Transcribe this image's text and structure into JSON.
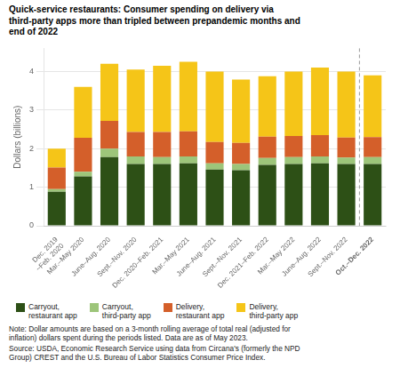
{
  "chart_data": {
    "type": "bar",
    "stacked": true,
    "title": "Quick-service restaurants: Consumer spending on delivery via\nthird-party apps more than tripled between prepandemic months and\nend of 2022",
    "ylabel": "Dollars (billions)",
    "categories": [
      "Dec. 2019\n~Feb. 2020",
      "Mar.–May 2020",
      "June–Aug. 2020",
      "Sept.–Nov. 2020",
      "Dec. 2020–Feb. 2021",
      "Mar.–May 2021",
      "June–Aug. 2021",
      "Sept.–Nov. 2021",
      "Dec. 2021–Feb. 2022",
      "Mar.–May 2022",
      "June–Aug. 2022",
      "Sept.–Nov. 2022",
      "Oct.–Dec. 2022"
    ],
    "series": [
      {
        "name": "Carryout,\nrestaurant app",
        "color": "#2d5016",
        "values": [
          0.88,
          1.28,
          1.78,
          1.6,
          1.6,
          1.62,
          1.46,
          1.44,
          1.58,
          1.6,
          1.62,
          1.6,
          1.6
        ]
      },
      {
        "name": "Carryout,\nthird-party app",
        "color": "#9dc57a",
        "values": [
          0.07,
          0.12,
          0.22,
          0.2,
          0.18,
          0.18,
          0.16,
          0.16,
          0.18,
          0.18,
          0.18,
          0.17,
          0.18
        ]
      },
      {
        "name": "Delivery,\nrestaurant app",
        "color": "#d45f2a",
        "values": [
          0.56,
          0.88,
          0.72,
          0.63,
          0.65,
          0.65,
          0.55,
          0.55,
          0.55,
          0.55,
          0.55,
          0.52,
          0.52
        ]
      },
      {
        "name": "Delivery,\nthird-party app",
        "color": "#f5c518",
        "values": [
          0.49,
          1.32,
          1.48,
          1.62,
          1.72,
          1.8,
          1.83,
          1.64,
          1.57,
          1.67,
          1.75,
          1.71,
          1.6
        ]
      }
    ],
    "ylim": [
      0,
      4.6
    ],
    "yticks": [
      0,
      1,
      2,
      3,
      4
    ],
    "grid": true,
    "legend": "bottom",
    "note": "Note: Dollar amounts are based on a 3-month rolling average of total real (adjusted for\ninflation) dollars spent during the periods listed. Data are as of May 2023.",
    "source": "Source: USDA, Economic Research Service using data from Circana's (formerly the NPD\nGroup) CREST and the U.S. Bureau of Labor Statistics Consumer Price Index."
  }
}
